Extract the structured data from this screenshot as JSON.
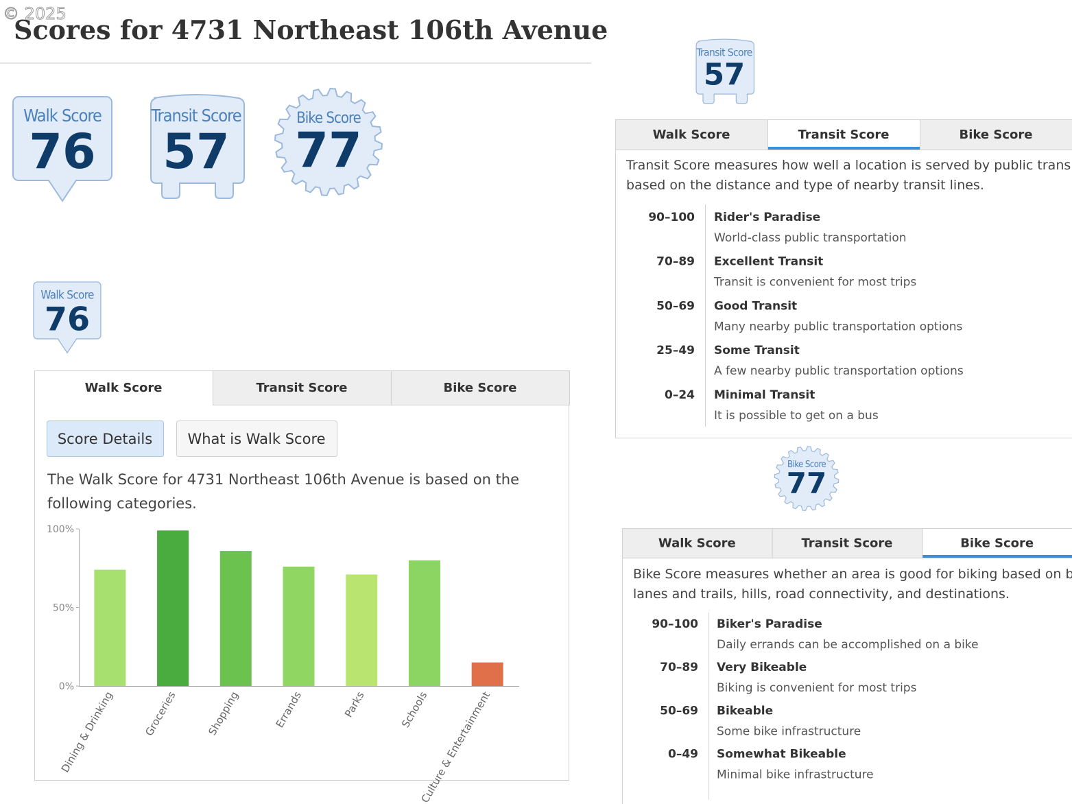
{
  "watermark": "© 2025",
  "title": "Scores for 4731 Northeast 106th Avenue",
  "badges": [
    {
      "kind": "walk",
      "label": "Walk Score",
      "score": 76
    },
    {
      "kind": "transit",
      "label": "Transit Score",
      "score": 57
    },
    {
      "kind": "bike",
      "label": "Bike Score",
      "score": 77
    }
  ],
  "walk_panel": {
    "badge": {
      "kind": "walk",
      "label": "Walk Score",
      "score": 76
    },
    "tabs": [
      "Walk Score",
      "Transit Score",
      "Bike Score"
    ],
    "active_tab": 0,
    "buttons": [
      "Score Details",
      "What is Walk Score"
    ],
    "description_lines": [
      "The Walk Score for 4731 Northeast 106th Avenue is based on the",
      "following categories."
    ]
  },
  "chart_data": {
    "type": "bar",
    "categories": [
      "Dining & Drinking",
      "Groceries",
      "Shopping",
      "Errands",
      "Parks",
      "Schools",
      "Culture & Entertainment"
    ],
    "values": [
      74,
      99,
      86,
      76,
      71,
      80,
      15
    ],
    "colors": [
      "#a8e070",
      "#4aab3e",
      "#6cc24f",
      "#8fd662",
      "#b9e46f",
      "#8dd563",
      "#e0704a"
    ],
    "ylim": [
      0,
      100
    ],
    "yticks": [
      {
        "value": 0,
        "label": "0%"
      },
      {
        "value": 50,
        "label": "50%"
      },
      {
        "value": 100,
        "label": "100%"
      }
    ]
  },
  "transit_panel": {
    "badge": {
      "kind": "transit",
      "label": "Transit Score",
      "score": 57
    },
    "tabs": [
      "Walk Score",
      "Transit Score",
      "Bike Score"
    ],
    "active_tab": 1,
    "description_lines": [
      "Transit Score measures how well a location is served by public transit",
      "based on the distance and type of nearby transit lines."
    ],
    "levels": [
      {
        "range": "90–100",
        "name": "Rider's Paradise",
        "description": "World-class public transportation"
      },
      {
        "range": "70–89",
        "name": "Excellent Transit",
        "description": "Transit is convenient for most trips"
      },
      {
        "range": "50–69",
        "name": "Good Transit",
        "description": "Many nearby public transportation options"
      },
      {
        "range": "25–49",
        "name": "Some Transit",
        "description": "A few nearby public transportation options"
      },
      {
        "range": "0–24",
        "name": "Minimal Transit",
        "description": "It is possible to get on a bus"
      }
    ]
  },
  "bike_panel": {
    "badge": {
      "kind": "bike",
      "label": "Bike Score",
      "score": 77
    },
    "tabs": [
      "Walk Score",
      "Transit Score",
      "Bike Score"
    ],
    "active_tab": 2,
    "description_lines": [
      "Bike Score measures whether an area is good for biking based on bike",
      "lanes and trails, hills, road connectivity, and destinations."
    ],
    "levels": [
      {
        "range": "90–100",
        "name": "Biker's Paradise",
        "description": "Daily errands can be accomplished on a bike"
      },
      {
        "range": "70–89",
        "name": "Very Bikeable",
        "description": "Biking is convenient for most trips"
      },
      {
        "range": "50–69",
        "name": "Bikeable",
        "description": "Some bike infrastructure"
      },
      {
        "range": "0–49",
        "name": "Somewhat Bikeable",
        "description": "Minimal bike infrastructure"
      }
    ]
  }
}
